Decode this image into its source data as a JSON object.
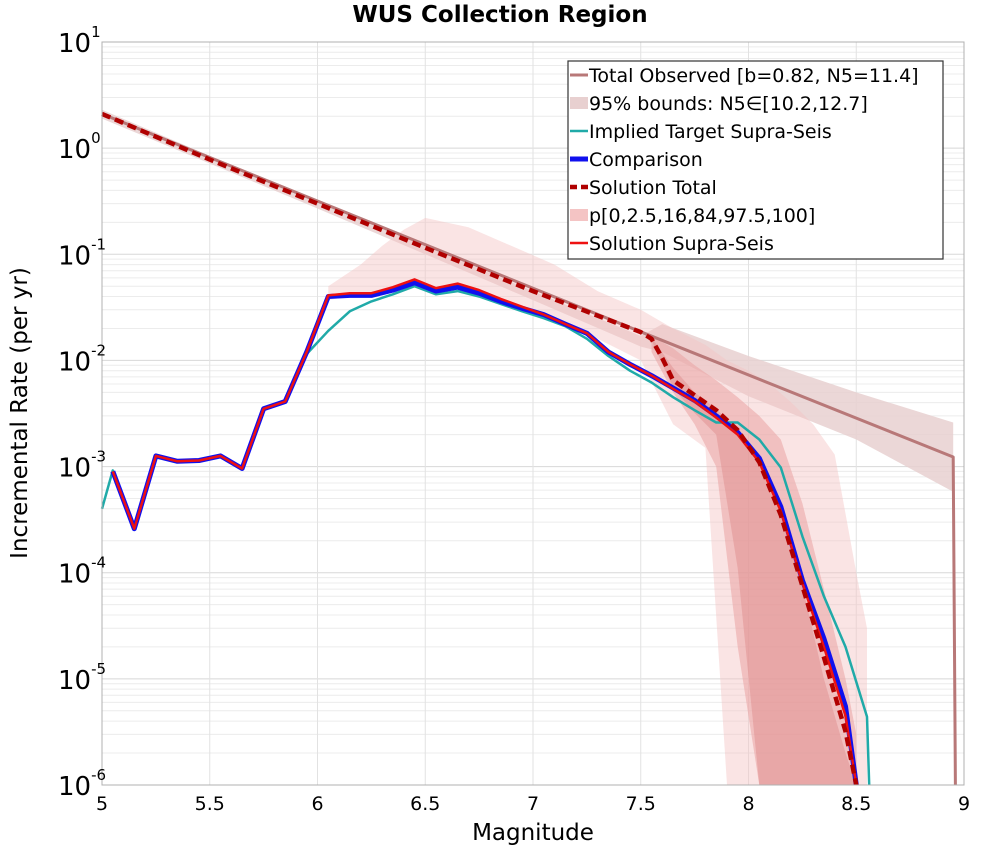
{
  "chart_data": {
    "type": "line",
    "title": "WUS Collection Region",
    "xlabel": "Magnitude",
    "ylabel": "Incremental Rate (per yr)",
    "xlim": [
      5,
      9
    ],
    "ylim": [
      1e-06,
      10
    ],
    "yscale": "log",
    "grid": true,
    "x_ticks": [
      "5",
      "5.5",
      "6",
      "6.5",
      "7",
      "7.5",
      "8",
      "8.5",
      "9"
    ],
    "y_ticks": [
      {
        "base": "10",
        "exp": "1"
      },
      {
        "base": "10",
        "exp": "0"
      },
      {
        "base": "10",
        "exp": "-1"
      },
      {
        "base": "10",
        "exp": "-2"
      },
      {
        "base": "10",
        "exp": "-3"
      },
      {
        "base": "10",
        "exp": "-4"
      },
      {
        "base": "10",
        "exp": "-5"
      },
      {
        "base": "10",
        "exp": "-6"
      }
    ],
    "legend_position": "top-right",
    "colors": {
      "total_observed": "#b87878",
      "bounds95": "#e8d0d0",
      "implied_target": "#20aaa8",
      "comparison": "#1010ee",
      "solution_total": "#b00000",
      "percentile_band": "#f4c4c4",
      "solution_supra": "#ee1111"
    },
    "series": [
      {
        "name": "Total Observed [b=0.82, N5=11.4]",
        "kind": "line",
        "x": [
          5.0,
          7.5,
          8.95,
          8.96
        ],
        "y": [
          2.1,
          0.0186,
          0.00123,
          1e-06
        ]
      },
      {
        "name": "95% bounds: N5∈[10.2,12.7]",
        "kind": "band",
        "x": [
          5.0,
          6.0,
          6.5,
          7.0,
          7.5,
          7.6,
          8.0,
          8.5,
          8.95
        ],
        "lower": [
          1.9,
          0.27,
          0.1,
          0.037,
          0.0135,
          0.012,
          0.0046,
          0.0018,
          0.00058
        ],
        "upper": [
          2.3,
          0.31,
          0.12,
          0.045,
          0.017,
          0.022,
          0.011,
          0.005,
          0.0026
        ]
      },
      {
        "name": "p[0,2.5,16,84,97.5,100]",
        "kind": "percentile_bands",
        "outer": {
          "x": [
            6.05,
            6.2,
            6.3,
            6.4,
            6.5,
            6.7,
            6.9,
            7.1,
            7.3,
            7.5,
            7.65,
            7.8,
            7.9,
            8.0,
            8.1,
            8.2,
            8.3,
            8.4,
            8.5,
            8.55
          ],
          "lower": [
            0.037,
            0.042,
            0.045,
            0.05,
            0.05,
            0.048,
            0.035,
            0.025,
            0.016,
            0.01,
            0.0025,
            0.0015,
            1e-06,
            1e-06,
            1e-06,
            1e-06,
            1e-06,
            1e-06,
            1e-06,
            1e-06
          ],
          "upper": [
            0.05,
            0.08,
            0.12,
            0.17,
            0.22,
            0.18,
            0.12,
            0.08,
            0.045,
            0.03,
            0.02,
            0.014,
            0.01,
            0.008,
            0.006,
            0.004,
            0.0025,
            0.0013,
            0.0001,
            3e-05
          ]
        },
        "middle": {
          "x": [
            7.55,
            7.65,
            7.75,
            7.85,
            7.95,
            8.05,
            8.15,
            8.25,
            8.35,
            8.45,
            8.5
          ],
          "lower": [
            0.012,
            0.005,
            0.0025,
            0.001,
            2e-05,
            1e-06,
            1e-06,
            1e-06,
            1e-06,
            1e-06,
            1e-06
          ],
          "upper": [
            0.017,
            0.013,
            0.009,
            0.0065,
            0.0045,
            0.003,
            0.0018,
            0.00045,
            7e-05,
            1e-05,
            3e-06
          ]
        },
        "inner": {
          "x": [
            7.55,
            7.65,
            7.75,
            7.85,
            7.95,
            8.05,
            8.15,
            8.25,
            8.35,
            8.45,
            8.5
          ],
          "lower": [
            0.0155,
            0.0055,
            0.0032,
            0.002,
            0.00011,
            1e-06,
            1e-06,
            1e-06,
            1e-06,
            1e-06,
            1e-06
          ],
          "upper": [
            0.0165,
            0.0085,
            0.005,
            0.0035,
            0.0022,
            0.0012,
            0.00035,
            7.5e-05,
            1e-05,
            2e-06,
            1e-06
          ]
        }
      },
      {
        "name": "Implied Target Supra-Seis",
        "kind": "line",
        "x": [
          5.0,
          5.05,
          5.15,
          5.25,
          5.35,
          5.45,
          5.55,
          5.65,
          5.75,
          5.85,
          5.95,
          6.05,
          6.15,
          6.25,
          6.35,
          6.45,
          6.55,
          6.65,
          6.75,
          6.85,
          6.95,
          7.05,
          7.15,
          7.25,
          7.35,
          7.45,
          7.55,
          7.65,
          7.75,
          7.85,
          7.95,
          8.05,
          8.15,
          8.25,
          8.35,
          8.45,
          8.55,
          8.56
        ],
        "y": [
          0.0004,
          0.00092,
          0.00026,
          0.00128,
          0.00112,
          0.00114,
          0.00126,
          0.00096,
          0.0035,
          0.0041,
          0.0115,
          0.019,
          0.029,
          0.036,
          0.042,
          0.05,
          0.042,
          0.045,
          0.04,
          0.034,
          0.029,
          0.025,
          0.021,
          0.016,
          0.011,
          0.008,
          0.0062,
          0.0045,
          0.0034,
          0.0026,
          0.0026,
          0.0018,
          0.00098,
          0.00022,
          6e-05,
          2e-05,
          4.4e-06,
          1e-06
        ]
      },
      {
        "name": "Comparison",
        "kind": "line",
        "x": [
          5.05,
          5.15,
          5.25,
          5.35,
          5.45,
          5.55,
          5.65,
          5.75,
          5.85,
          5.95,
          6.05,
          6.15,
          6.25,
          6.35,
          6.45,
          6.55,
          6.65,
          6.75,
          6.85,
          6.95,
          7.05,
          7.15,
          7.25,
          7.35,
          7.45,
          7.55,
          7.65,
          7.75,
          7.85,
          7.95,
          8.05,
          8.15,
          8.25,
          8.35,
          8.45,
          8.5
        ],
        "y": [
          0.0009,
          0.00026,
          0.00126,
          0.00112,
          0.00114,
          0.00126,
          0.00096,
          0.0035,
          0.0041,
          0.012,
          0.04,
          0.041,
          0.041,
          0.046,
          0.054,
          0.045,
          0.049,
          0.043,
          0.036,
          0.031,
          0.027,
          0.022,
          0.018,
          0.012,
          0.0092,
          0.0072,
          0.0055,
          0.0042,
          0.003,
          0.0021,
          0.0012,
          0.00042,
          8.5e-05,
          2.4e-05,
          5.5e-06,
          1e-06
        ]
      },
      {
        "name": "Solution Total",
        "kind": "line",
        "x": [
          5.0,
          5.5,
          6.0,
          6.5,
          7.0,
          7.5,
          7.55,
          7.6,
          7.65,
          7.75,
          7.85,
          7.95,
          8.05,
          8.15,
          8.25,
          8.35,
          8.45,
          8.5
        ],
        "y": [
          2.1,
          0.78,
          0.3,
          0.115,
          0.045,
          0.0185,
          0.016,
          0.0105,
          0.0065,
          0.0047,
          0.0034,
          0.0022,
          0.0011,
          0.00035,
          7.5e-05,
          1.6e-05,
          3.2e-06,
          1e-06
        ]
      },
      {
        "name": "Solution Supra-Seis",
        "kind": "line",
        "x": [
          5.05,
          5.15,
          5.25,
          5.35,
          5.45,
          5.55,
          5.65,
          5.75,
          5.85,
          5.95,
          6.05,
          6.15,
          6.25,
          6.35,
          6.45,
          6.55,
          6.65,
          6.75,
          6.85,
          6.95,
          7.05,
          7.15,
          7.25,
          7.35,
          7.45,
          7.55,
          7.65,
          7.75,
          7.85,
          7.95,
          8.05,
          8.15,
          8.25,
          8.35,
          8.45,
          8.5
        ],
        "y": [
          0.0009,
          0.00026,
          0.00126,
          0.00112,
          0.00114,
          0.00126,
          0.00096,
          0.0035,
          0.0041,
          0.012,
          0.041,
          0.043,
          0.043,
          0.049,
          0.058,
          0.048,
          0.053,
          0.046,
          0.038,
          0.032,
          0.027,
          0.022,
          0.018,
          0.012,
          0.0092,
          0.0072,
          0.0054,
          0.0041,
          0.0029,
          0.002,
          0.0011,
          0.00038,
          8e-05,
          2e-05,
          4.5e-06,
          1e-06
        ]
      }
    ],
    "legend": [
      "Total Observed [b=0.82, N5=11.4]",
      "95% bounds: N5∈[10.2,12.7]",
      "Implied Target Supra-Seis",
      "Comparison",
      "Solution Total",
      "p[0,2.5,16,84,97.5,100]",
      "Solution Supra-Seis"
    ]
  }
}
